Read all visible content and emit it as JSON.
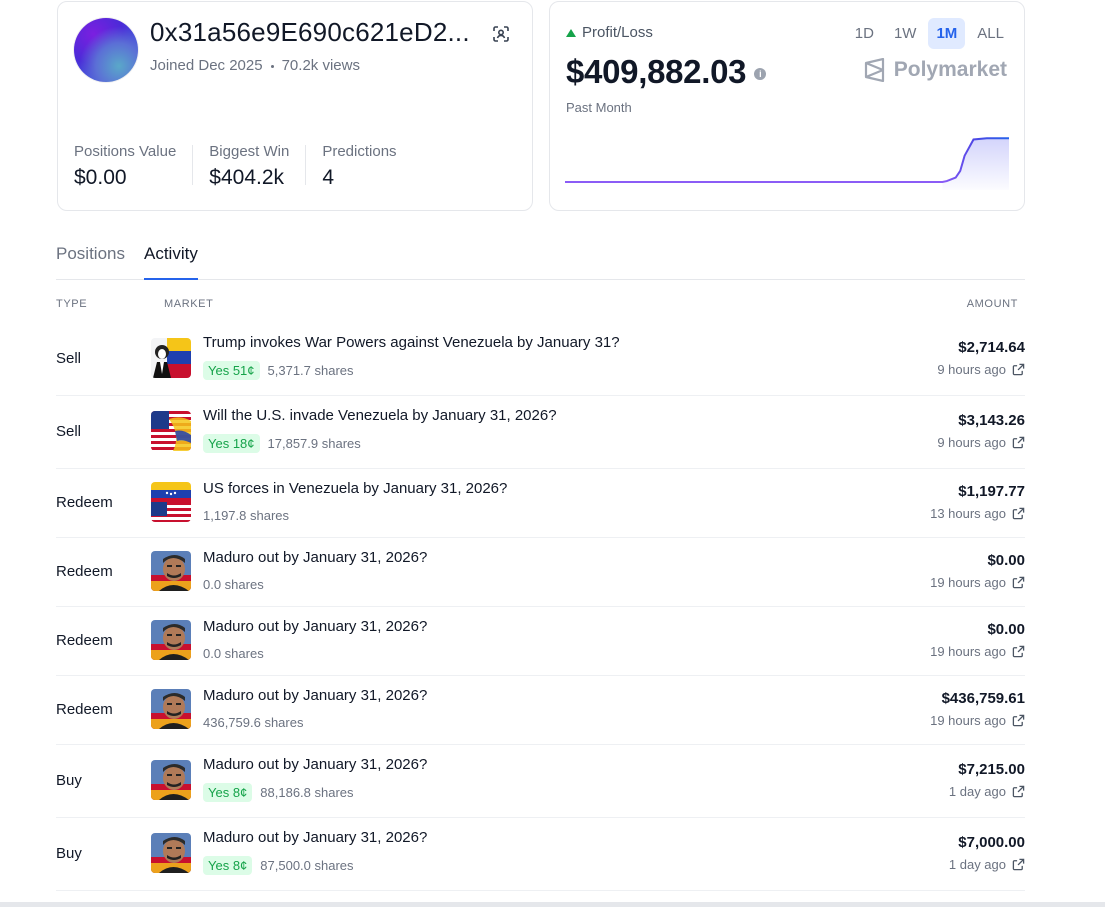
{
  "profile": {
    "username": "0x31a56e9E690c621eD2...",
    "joined": "Joined Dec 2025",
    "views": "70.2k views",
    "stats": [
      {
        "label": "Positions Value",
        "value": "$0.00"
      },
      {
        "label": "Biggest Win",
        "value": "$404.2k"
      },
      {
        "label": "Predictions",
        "value": "4"
      }
    ]
  },
  "pnl": {
    "label": "Profit/Loss",
    "value": "$409,882.03",
    "period_label": "Past Month",
    "ranges": [
      "1D",
      "1W",
      "1M",
      "ALL"
    ],
    "active_range": "1M",
    "brand": "Polymarket",
    "colors": {
      "line_start": "#8b5cf6",
      "line_end": "#2563eb",
      "up": "#16a34a"
    }
  },
  "chart_data": {
    "type": "line",
    "title": "",
    "xlabel": "",
    "ylabel": "",
    "x": [
      0,
      5,
      10,
      15,
      20,
      25,
      30,
      35,
      40,
      45,
      50,
      55,
      60,
      65,
      70,
      75,
      80,
      85,
      86,
      88,
      89,
      90,
      92,
      95,
      100
    ],
    "values": [
      0,
      0,
      0,
      0,
      0,
      0,
      0,
      0,
      0,
      0,
      0,
      0,
      0,
      0,
      0,
      0,
      0,
      0,
      0.02,
      0.1,
      0.25,
      0.6,
      0.97,
      1.0,
      1.0
    ],
    "ylim": [
      0,
      1.05
    ],
    "grid": false
  },
  "tabs": [
    {
      "label": "Positions",
      "active": false
    },
    {
      "label": "Activity",
      "active": true
    }
  ],
  "columns": {
    "type": "TYPE",
    "market": "MARKET",
    "amount": "AMOUNT"
  },
  "rows": [
    {
      "type": "Sell",
      "title": "Trump invokes War Powers against Venezuela by January 31?",
      "badge": "Yes 51¢",
      "shares": "5,371.7 shares",
      "amount": "$2,714.64",
      "time": "9 hours ago",
      "thumb": "trump-venezuela"
    },
    {
      "type": "Sell",
      "title": "Will the U.S. invade Venezuela by January 31, 2026?",
      "badge": "Yes 18¢",
      "shares": "17,857.9 shares",
      "amount": "$3,143.26",
      "time": "9 hours ago",
      "thumb": "us-flag"
    },
    {
      "type": "Redeem",
      "title": "US forces in Venezuela by January 31, 2026?",
      "badge": "",
      "shares": "1,197.8 shares",
      "amount": "$1,197.77",
      "time": "13 hours ago",
      "thumb": "us-venezuela-flag"
    },
    {
      "type": "Redeem",
      "title": "Maduro out by January 31, 2026?",
      "badge": "",
      "shares": "0.0 shares",
      "amount": "$0.00",
      "time": "19 hours ago",
      "thumb": "maduro"
    },
    {
      "type": "Redeem",
      "title": "Maduro out by January 31, 2026?",
      "badge": "",
      "shares": "0.0 shares",
      "amount": "$0.00",
      "time": "19 hours ago",
      "thumb": "maduro"
    },
    {
      "type": "Redeem",
      "title": "Maduro out by January 31, 2026?",
      "badge": "",
      "shares": "436,759.6 shares",
      "amount": "$436,759.61",
      "time": "19 hours ago",
      "thumb": "maduro"
    },
    {
      "type": "Buy",
      "title": "Maduro out by January 31, 2026?",
      "badge": "Yes 8¢",
      "shares": "88,186.8 shares",
      "amount": "$7,215.00",
      "time": "1 day ago",
      "thumb": "maduro"
    },
    {
      "type": "Buy",
      "title": "Maduro out by January 31, 2026?",
      "badge": "Yes 8¢",
      "shares": "87,500.0 shares",
      "amount": "$7,000.00",
      "time": "1 day ago",
      "thumb": "maduro"
    }
  ]
}
